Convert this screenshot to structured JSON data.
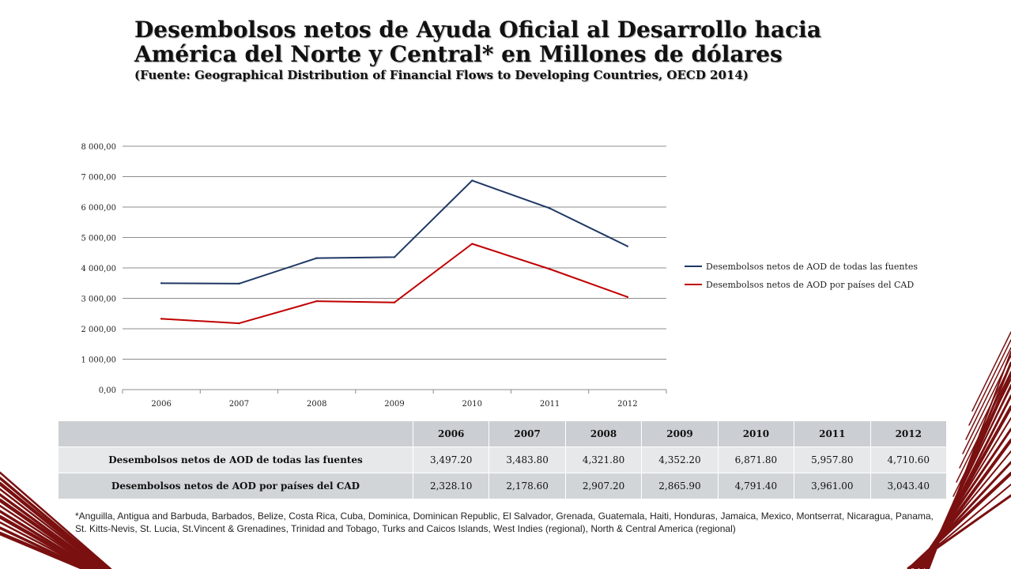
{
  "title": {
    "main": "Desembolsos netos de Ayuda Oficial al Desarrollo hacia América del Norte y Central* en Millones de dólares",
    "source": "(Fuente: Geographical Distribution of Financial Flows to Developing Countries, OECD 2014)"
  },
  "chart_data": {
    "type": "line",
    "x": [
      "2006",
      "2007",
      "2008",
      "2009",
      "2010",
      "2011",
      "2012"
    ],
    "ylim": [
      0,
      8000
    ],
    "yticks": [
      0,
      1000,
      2000,
      3000,
      4000,
      5000,
      6000,
      7000,
      8000
    ],
    "ytick_labels": [
      "0,00",
      "1 000,00",
      "2 000,00",
      "3 000,00",
      "4 000,00",
      "5 000,00",
      "6 000,00",
      "7 000,00",
      "8 000,00"
    ],
    "grid": true,
    "legend_position": "right",
    "series": [
      {
        "name": "Desembolsos netos de AOD de todas las fuentes",
        "color": "#1f3864",
        "values": [
          3497.2,
          3483.8,
          4321.8,
          4352.2,
          6871.8,
          5957.8,
          4710.6
        ]
      },
      {
        "name": "Desembolsos netos de AOD por países del CAD",
        "color": "#c00000",
        "values": [
          2328.1,
          2178.6,
          2907.2,
          2865.9,
          4791.4,
          3961.0,
          3043.4
        ]
      }
    ]
  },
  "table": {
    "years": [
      "2006",
      "2007",
      "2008",
      "2009",
      "2010",
      "2011",
      "2012"
    ],
    "rows": [
      {
        "label": "Desembolsos netos de AOD de todas las fuentes",
        "values": [
          "3,497.20",
          "3,483.80",
          "4,321.80",
          "4,352.20",
          "6,871.80",
          "5,957.80",
          "4,710.60"
        ]
      },
      {
        "label": "Desembolsos netos de AOD por países del CAD",
        "values": [
          "2,328.10",
          "2,178.60",
          "2,907.20",
          "2,865.90",
          "4,791.40",
          "3,961.00",
          "3,043.40"
        ]
      }
    ]
  },
  "footnote": "*Anguilla, Antigua and Barbuda, Barbados, Belize, Costa Rica, Cuba, Dominica, Dominican Republic, El Salvador, Grenada, Guatemala, Haiti, Honduras, Jamaica, Mexico, Montserrat, Nicaragua, Panama, St. Kitts-Nevis, St. Lucia, St.Vincent & Grenadines, Trinidad and Tobago, Turks and Caicos Islands, West Indies (regional), North & Central America (regional)",
  "decoration": {
    "stripe_color": "#7a1010"
  }
}
